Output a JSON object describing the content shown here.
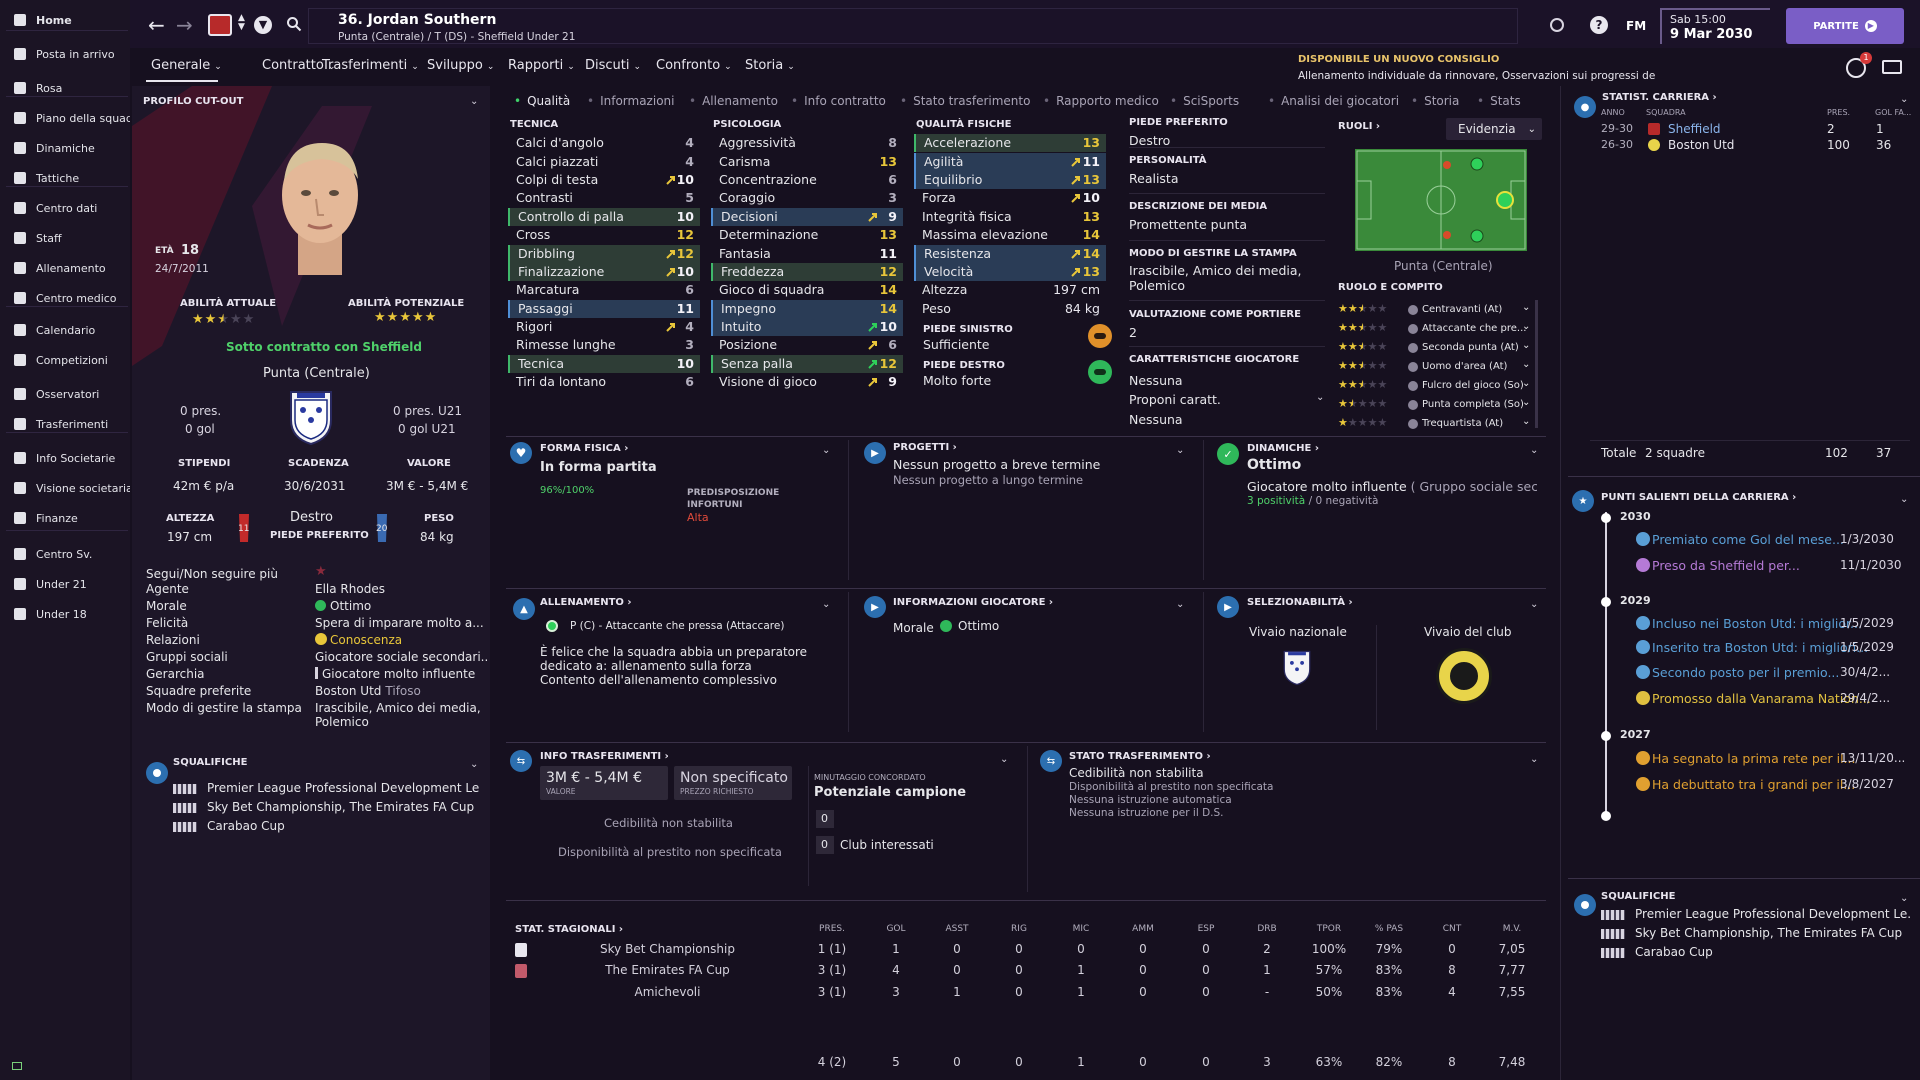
{
  "sidebar": {
    "items": [
      {
        "label": "Home",
        "icon": "home-icon"
      },
      {
        "label": "Posta in arrivo",
        "icon": "inbox-icon"
      },
      {
        "label": "Rosa",
        "icon": "squad-icon"
      },
      {
        "label": "Piano della squadra",
        "icon": "squad-plan-icon"
      },
      {
        "label": "Dinamiche",
        "icon": "dynamics-icon"
      },
      {
        "label": "Tattiche",
        "icon": "tactics-icon"
      },
      {
        "label": "Centro dati",
        "icon": "data-hub-icon"
      },
      {
        "label": "Staff",
        "icon": "staff-icon"
      },
      {
        "label": "Allenamento",
        "icon": "training-icon"
      },
      {
        "label": "Centro medico",
        "icon": "medical-icon"
      },
      {
        "label": "Calendario",
        "icon": "calendar-icon"
      },
      {
        "label": "Competizioni",
        "icon": "trophy-icon"
      },
      {
        "label": "Osservatori",
        "icon": "scouting-icon"
      },
      {
        "label": "Trasferimenti",
        "icon": "transfers-icon"
      },
      {
        "label": "Info Societarie",
        "icon": "club-info-icon"
      },
      {
        "label": "Visione societaria",
        "icon": "club-vision-icon"
      },
      {
        "label": "Finanze",
        "icon": "finances-icon"
      },
      {
        "label": "Centro Sv.",
        "icon": "dev-centre-icon"
      },
      {
        "label": "Under 21",
        "icon": "under21-icon"
      },
      {
        "label": "Under 18",
        "icon": "under18-icon"
      }
    ]
  },
  "header": {
    "player_title": "36. Jordan Southern",
    "player_subtitle": "Punta (Centrale) / T (DS) - Sheffield Under 21",
    "date_line1": "Sab 15:00",
    "date_line2": "9 Mar 2030",
    "continue_label": "PARTITE",
    "fm_label": "FM",
    "notif_count": "1",
    "advice_title": "DISPONIBILE UN NUOVO CONSIGLIO",
    "advice_text": "Allenamento individuale da rinnovare, Osservazioni sui progressi dei giocatore, Giocatori ad alto potenziale"
  },
  "submenu": [
    "Generale",
    "Contratto",
    "Trasferimenti",
    "Sviluppo",
    "Rapporti",
    "Discuti",
    "Confronto",
    "Storia"
  ],
  "tabs": [
    "Qualità",
    "Informazioni",
    "Allenamento",
    "Info contratto",
    "Stato trasferimento",
    "Rapporto medico",
    "SciSports",
    "Analisi dei giocatori",
    "Storia",
    "Stats"
  ],
  "profile": {
    "section_title": "PROFILO CUT-OUT",
    "age_label": "ETÀ",
    "age": "18",
    "dob": "24/7/2011",
    "current_ability_label": "ABILITÀ ATTUALE",
    "potential_ability_label": "ABILITÀ POTENZIALE",
    "current_stars": 2.5,
    "potential_stars": 5,
    "contract_status": "Sotto contratto con Sheffield",
    "position": "Punta (Centrale)",
    "apps_left": "0 pres.",
    "goals_left": "0 gol",
    "apps_right": "0 pres. U21",
    "goals_right": "0 gol U21",
    "wage_label": "STIPENDI",
    "wage": "42m € p/a",
    "expiry_label": "SCADENZA",
    "expiry": "30/6/2031",
    "value_label": "VALORE",
    "value": "3M € - 5,4M €",
    "height_label": "ALTEZZA",
    "height": "197 cm",
    "foot": "Destro",
    "foot_label": "PIEDE PREFERITO",
    "weight_label": "PESO",
    "weight": "84 kg",
    "shirt_left": "11",
    "shirt_right": "20",
    "follow_label": "Segui/Non seguire più",
    "info": [
      {
        "k": "Agente",
        "v": "Ella Rhodes"
      },
      {
        "k": "Morale",
        "v": "Ottimo"
      },
      {
        "k": "Felicità",
        "v": "Spera di imparare molto a..."
      },
      {
        "k": "Relazioni",
        "v": "Conoscenza"
      },
      {
        "k": "Gruppi sociali",
        "v": "Giocatore sociale secondari..."
      },
      {
        "k": "Gerarchia",
        "v": "Giocatore molto influente"
      },
      {
        "k": "Squadre preferite",
        "v": "Boston Utd",
        "v2": "Tifoso"
      },
      {
        "k": "Modo di gestire la stampa",
        "v": "Irascibile, Amico dei media,",
        "v3": "Polemico"
      }
    ],
    "bans_title": "SQUALIFICHE",
    "bans": [
      "Premier League Professional Development Le...",
      "Sky Bet Championship, The Emirates FA Cup",
      "Carabao Cup"
    ]
  },
  "attributes": {
    "tech_title": "TECNICA",
    "mental_title": "PSICOLOGIA",
    "phys_title": "QUALITÀ FISICHE",
    "tech": [
      {
        "n": "Calci d'angolo",
        "v": "4"
      },
      {
        "n": "Calci piazzati",
        "v": "4"
      },
      {
        "n": "Colpi di testa",
        "v": "10"
      },
      {
        "n": "Contrasti",
        "v": "5"
      },
      {
        "n": "Controllo di palla",
        "v": "10"
      },
      {
        "n": "Cross",
        "v": "12"
      },
      {
        "n": "Dribbling",
        "v": "12"
      },
      {
        "n": "Finalizzazione",
        "v": "10"
      },
      {
        "n": "Marcatura",
        "v": "6"
      },
      {
        "n": "Passaggi",
        "v": "11"
      },
      {
        "n": "Rigori",
        "v": "4"
      },
      {
        "n": "Rimesse lunghe",
        "v": "3"
      },
      {
        "n": "Tecnica",
        "v": "10"
      },
      {
        "n": "Tiri da lontano",
        "v": "6"
      }
    ],
    "mental": [
      {
        "n": "Aggressività",
        "v": "8"
      },
      {
        "n": "Carisma",
        "v": "13"
      },
      {
        "n": "Concentrazione",
        "v": "6"
      },
      {
        "n": "Coraggio",
        "v": "3"
      },
      {
        "n": "Decisioni",
        "v": "9"
      },
      {
        "n": "Determinazione",
        "v": "13"
      },
      {
        "n": "Fantasia",
        "v": "11"
      },
      {
        "n": "Freddezza",
        "v": "12"
      },
      {
        "n": "Gioco di squadra",
        "v": "14"
      },
      {
        "n": "Impegno",
        "v": "14"
      },
      {
        "n": "Intuito",
        "v": "10"
      },
      {
        "n": "Posizione",
        "v": "6"
      },
      {
        "n": "Senza palla",
        "v": "12"
      },
      {
        "n": "Visione di gioco",
        "v": "9"
      }
    ],
    "phys": [
      {
        "n": "Accelerazione",
        "v": "13"
      },
      {
        "n": "Agilità",
        "v": "11"
      },
      {
        "n": "Equilibrio",
        "v": "13"
      },
      {
        "n": "Forza",
        "v": "10"
      },
      {
        "n": "Integrità fisica",
        "v": "13"
      },
      {
        "n": "Massima elevazione",
        "v": "14"
      },
      {
        "n": "Resistenza",
        "v": "14"
      },
      {
        "n": "Velocità",
        "v": "13"
      },
      {
        "n": "Altezza",
        "v": "197 cm"
      },
      {
        "n": "Peso",
        "v": "84 kg"
      }
    ],
    "left_foot_label": "PIEDE SINISTRO",
    "left_foot": "Sufficiente",
    "right_foot_label": "PIEDE DESTRO",
    "right_foot": "Molto forte"
  },
  "details": {
    "pref_foot_label": "PIEDE PREFERITO",
    "pref_foot": "Destro",
    "personality_label": "PERSONALITÀ",
    "personality": "Realista",
    "media_label": "DESCRIZIONE DEI MEDIA",
    "media": "Promettente punta",
    "press_label": "MODO DI GESTIRE LA STAMPA",
    "press_1": "Irascibile, Amico dei media,",
    "press_2": "Polemico",
    "gk_label": "VALUTAZIONE COME PORTIERE",
    "gk": "2",
    "traits_label": "CARATTERISTICHE GIOCATORE",
    "traits_1": "Nessuna",
    "traits_propose": "Proponi caratt.",
    "traits_2": "Nessuna"
  },
  "roles": {
    "title": "RUOLI",
    "dropdown": "Evidenzia",
    "position": "Punta (Centrale)",
    "role_title": "RUOLO E COMPITO",
    "list": [
      {
        "name": "Centravanti (At)",
        "stars": 2.5
      },
      {
        "name": "Attaccante che pre...",
        "stars": 2.5
      },
      {
        "name": "Seconda punta (At)",
        "stars": 2.5
      },
      {
        "name": "Uomo d'area (At)",
        "stars": 2.5
      },
      {
        "name": "Fulcro del gioco (So)",
        "stars": 2.5
      },
      {
        "name": "Punta completa (So)",
        "stars": 1.5
      },
      {
        "name": "Trequartista (At)",
        "stars": 1
      }
    ]
  },
  "cards": {
    "fitness_title": "FORMA FISICA",
    "fitness": "In forma partita",
    "fitness_pct": "96%/100%",
    "injury_label_1": "PREDISPOSIZIONE",
    "injury_label_2": "INFORTUNI",
    "injury_value": "Alta",
    "projects_title": "PROGETTI",
    "projects_1": "Nessun progetto a breve termine",
    "projects_2": "Nessun progetto a lungo termine",
    "dyn_title": "DINAMICHE",
    "dyn_status": "Ottimo",
    "dyn_desc": "Giocatore molto influente",
    "dyn_group": "( Gruppo sociale seco...",
    "dyn_pos": "3 positività",
    "dyn_sep": "/",
    "dyn_neg": "0 negatività",
    "train_title": "ALLENAMENTO",
    "train_role": "P (C) - Attaccante che pressa (Attaccare)",
    "train_1": "È felice che la squadra abbia un preparatore",
    "train_2": "dedicato a: allenamento sulla forza",
    "train_3": "Contento dell'allenamento complessivo",
    "pinfo_title": "INFORMAZIONI GIOCATORE",
    "pinfo_morale_label": "Morale",
    "pinfo_morale": "Ottimo",
    "sel_title": "SELEZIONABILITÀ",
    "sel_nat": "Vivaio nazionale",
    "sel_club": "Vivaio del club",
    "ti_title": "INFO TRASFERIMENTI",
    "ti_value": "3M € - 5,4M €",
    "ti_value_lbl": "VALORE",
    "ti_price": "Non specificato",
    "ti_price_lbl": "PREZZO RICHIESTO",
    "ti_min_lbl": "MINUTAGGIO CONCORDATO",
    "ti_min": "Potenziale campione",
    "ti_cnt1": "0",
    "ti_cnt2": "0",
    "ti_interested": "Club interessati",
    "ti_sell": "Cedibilità non stabilita",
    "ti_loan": "Disponibilità al prestito non specificata",
    "ts_title": "STATO TRASFERIMENTO",
    "ts_1": "Cedibilità non stabilita",
    "ts_2": "Disponibilità al prestito non specificata",
    "ts_3": "Nessuna istruzione automatica",
    "ts_4": "Nessuna istruzione per il D.S."
  },
  "season": {
    "title": "STAT. STAGIONALI",
    "cols": [
      "PRES.",
      "GOL",
      "ASST",
      "RIG",
      "MIC",
      "AMM",
      "ESP",
      "DRB",
      "TPOR",
      "% PAS",
      "CNT",
      "M.V."
    ],
    "rows": [
      {
        "comp": "Sky Bet Championship",
        "vals": [
          "1 (1)",
          "1",
          "0",
          "0",
          "0",
          "0",
          "0",
          "2",
          "100%",
          "79%",
          "0",
          "7,05"
        ]
      },
      {
        "comp": "The Emirates FA Cup",
        "vals": [
          "3 (1)",
          "4",
          "0",
          "0",
          "1",
          "0",
          "0",
          "1",
          "57%",
          "83%",
          "8",
          "7,77"
        ]
      },
      {
        "comp": "Amichevoli",
        "vals": [
          "3 (1)",
          "3",
          "1",
          "0",
          "1",
          "0",
          "0",
          "-",
          "50%",
          "83%",
          "4",
          "7,55"
        ]
      }
    ],
    "totals": [
      "4 (2)",
      "5",
      "0",
      "0",
      "1",
      "0",
      "0",
      "3",
      "63%",
      "82%",
      "8",
      "7,48"
    ]
  },
  "career": {
    "title": "STATIST. CARRIERA",
    "col_year": "ANNO",
    "col_team": "SQUADRA",
    "col_apps": "PRES.",
    "col_goals": "GOL FA...",
    "rows": [
      {
        "y": "29-30",
        "t": "Sheffield",
        "a": "2",
        "g": "1"
      },
      {
        "y": "26-30",
        "t": "Boston Utd",
        "a": "100",
        "g": "36"
      }
    ],
    "total_label": "Totale",
    "total_teams": "2 squadre",
    "total_apps": "102",
    "total_goals": "37"
  },
  "highlights": {
    "title": "PUNTI SALIENTI DELLA CARRIERA",
    "years": [
      {
        "y": "2030",
        "items": [
          {
            "t": "Premiato come Gol del mese...",
            "d": "1/3/2030",
            "c": "#5a9fd6"
          },
          {
            "t": "Preso da Sheffield per...",
            "d": "11/1/2030",
            "c": "#b57ad6"
          }
        ]
      },
      {
        "y": "2029",
        "items": [
          {
            "t": "Incluso nei Boston Utd: i miglior...",
            "d": "1/5/2029",
            "c": "#5a9fd6"
          },
          {
            "t": "Inserito tra Boston Utd: i migliori...",
            "d": "1/5/2029",
            "c": "#5a9fd6"
          },
          {
            "t": "Secondo posto per il premio...",
            "d": "30/4/2...",
            "c": "#5a9fd6"
          },
          {
            "t": "Promosso dalla Vanarama Nation...",
            "d": "29/4/2...",
            "c": "#e0c040"
          }
        ]
      },
      {
        "y": "2027",
        "items": [
          {
            "t": "Ha segnato la prima rete per il...",
            "d": "13/11/20...",
            "c": "#e0a030"
          },
          {
            "t": "Ha debuttato tra i grandi per il...",
            "d": "3/8/2027",
            "c": "#e0a030"
          }
        ]
      }
    ]
  },
  "bans_right": {
    "title": "SQUALIFICHE",
    "items": [
      "Premier League Professional Development Le...",
      "Sky Bet Championship, The Emirates FA Cup",
      "Carabao Cup"
    ]
  }
}
